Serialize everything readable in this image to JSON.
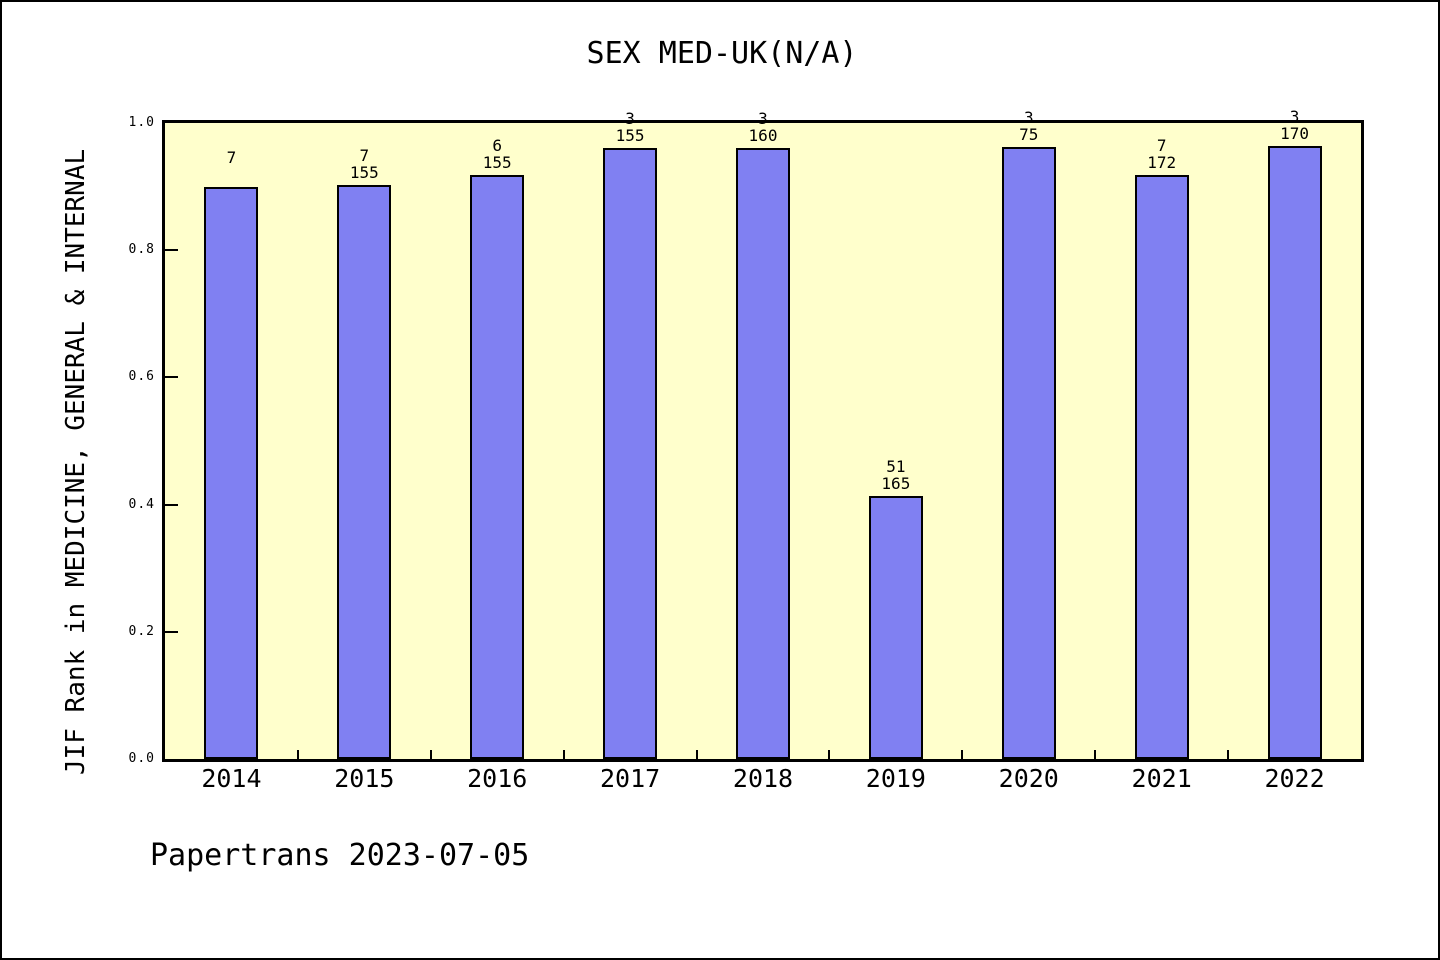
{
  "title": "SEX MED-UK(N/A)",
  "footer": "Papertrans 2023-07-05",
  "colors": {
    "bar_fill": "#8080F2",
    "bar_border": "#000000",
    "plot_background": "#FFFFCC",
    "axis": "#000000",
    "page_background": "#FFFFFF"
  },
  "chart_data": {
    "type": "bar",
    "title": "SEX MED-UK(N/A)",
    "xlabel": "",
    "ylabel": "JIF Rank in MEDICINE, GENERAL & INTERNAL",
    "categories": [
      "2014",
      "2015",
      "2016",
      "2017",
      "2018",
      "2019",
      "2020",
      "2021",
      "2022"
    ],
    "values": [
      0.899,
      0.903,
      0.919,
      0.96,
      0.96,
      0.414,
      0.963,
      0.919,
      0.964
    ],
    "bar_label_numerators": [
      "7",
      "7",
      "6",
      "3",
      "3",
      "51",
      "3",
      "7",
      "3"
    ],
    "bar_label_denominators": [
      "",
      "155",
      "155",
      "155",
      "160",
      "165",
      "75",
      "172",
      "170"
    ],
    "ylim": [
      0.0,
      1.0
    ],
    "yticks": [
      "0.0",
      "0.2",
      "0.4",
      "0.6",
      "0.8",
      "1.0"
    ],
    "ytick_values": [
      0.0,
      0.2,
      0.4,
      0.6,
      0.8,
      1.0
    ],
    "grid": false,
    "legend": null,
    "annotation": "Papertrans 2023-07-05"
  }
}
